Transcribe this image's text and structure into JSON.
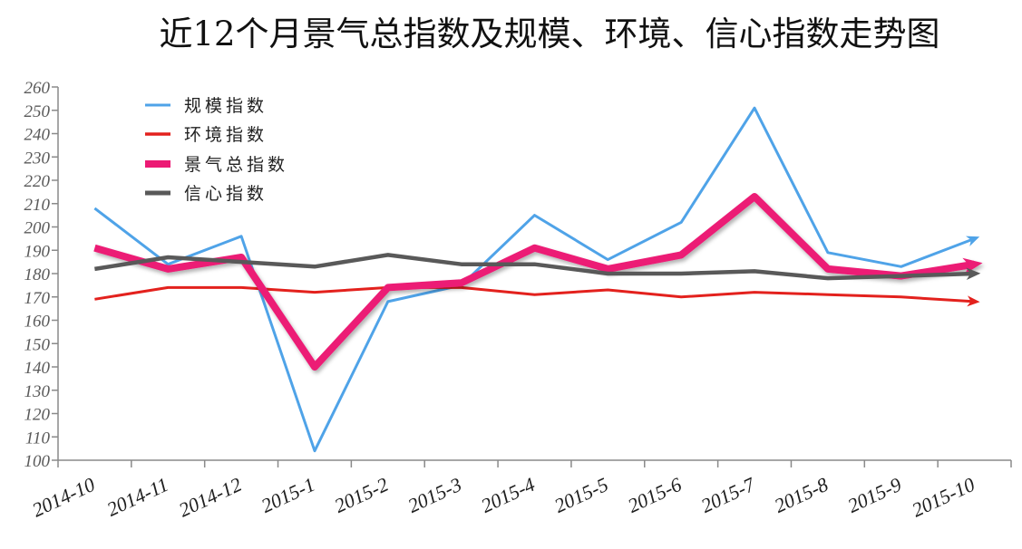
{
  "chart_data": {
    "type": "line",
    "title": "近12个月景气总指数及规模、环境、信心指数走势图",
    "categories": [
      "2014-10",
      "2014-11",
      "2014-12",
      "2015-1",
      "2015-2",
      "2015-3",
      "2015-4",
      "2015-5",
      "2015-6",
      "2015-7",
      "2015-8",
      "2015-9",
      "2015-10"
    ],
    "ylim": [
      100,
      260
    ],
    "yticks": [
      100,
      110,
      120,
      130,
      140,
      150,
      160,
      170,
      180,
      190,
      200,
      210,
      220,
      230,
      240,
      250,
      260
    ],
    "grid": false,
    "legend_position": "top-left",
    "series": [
      {
        "name": "规模指数",
        "color": "#4fa3e8",
        "values": [
          208,
          184,
          196,
          104,
          168,
          175,
          205,
          186,
          202,
          251,
          189,
          183,
          195
        ]
      },
      {
        "name": "环境指数",
        "color": "#e3211d",
        "values": [
          169,
          174,
          174,
          172,
          174,
          174,
          171,
          173,
          170,
          172,
          171,
          170,
          168
        ]
      },
      {
        "name": "景气总指数",
        "color": "#ec1a74",
        "values": [
          191,
          182,
          187,
          140,
          174,
          176,
          191,
          182,
          188,
          213,
          182,
          179,
          184
        ]
      },
      {
        "name": "信心指数",
        "color": "#595959",
        "values": [
          182,
          187,
          185,
          183,
          188,
          184,
          184,
          180,
          180,
          181,
          178,
          179,
          180
        ]
      }
    ]
  }
}
